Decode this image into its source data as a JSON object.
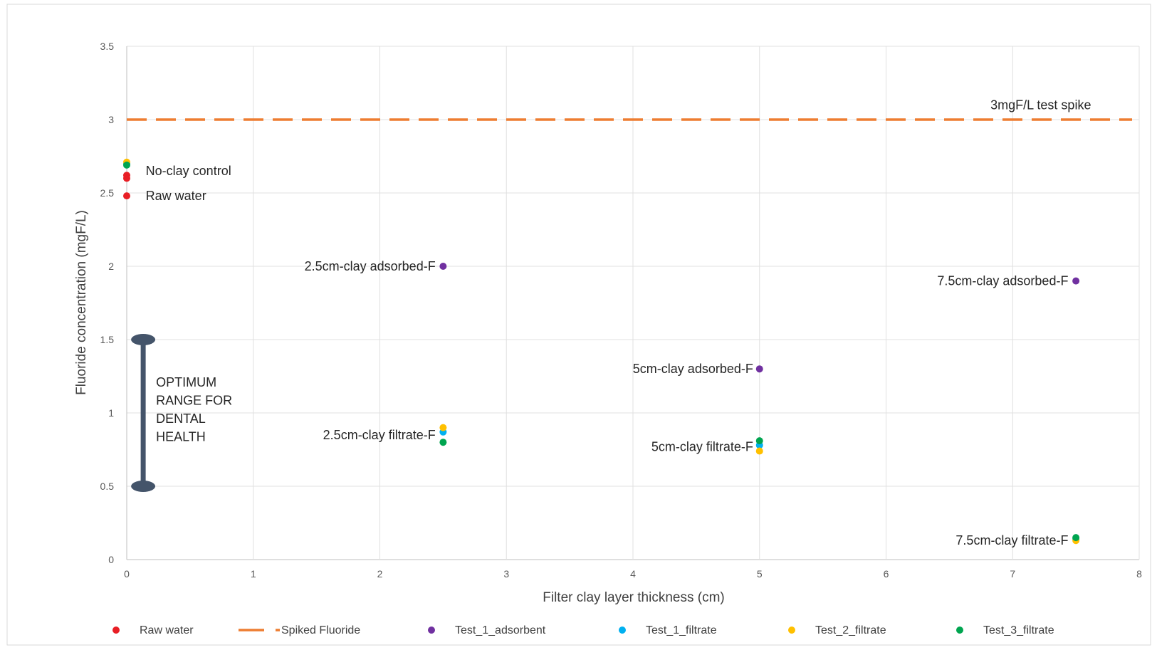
{
  "chart_data": {
    "type": "scatter",
    "title": "",
    "xlabel": "Filter clay layer thickness (cm)",
    "ylabel": "Fluoride concentration (mgF/L)",
    "xlim": [
      0,
      8
    ],
    "ylim": [
      0,
      3.5
    ],
    "x_ticks": [
      "0",
      "1",
      "2",
      "3",
      "4",
      "5",
      "6",
      "7",
      "8"
    ],
    "y_ticks": [
      "0",
      "0.5",
      "1",
      "1.5",
      "2",
      "2.5",
      "3",
      "3.5"
    ],
    "grid": true,
    "legend_position": "bottom",
    "series": [
      {
        "name": "Raw water",
        "kind": "marker",
        "color": "#e81e25",
        "points": [
          {
            "x": 0,
            "y": 2.48
          },
          {
            "x": 0,
            "y": 2.6
          },
          {
            "x": 0,
            "y": 2.62
          }
        ]
      },
      {
        "name": "Spiked Fluoride",
        "kind": "dashed-line",
        "color": "#ed7d31",
        "points": [
          {
            "x": 0,
            "y": 3
          },
          {
            "x": 8,
            "y": 3
          }
        ]
      },
      {
        "name": "Test_1_adsorbent",
        "kind": "marker",
        "color": "#7030a0",
        "points": [
          {
            "x": 2.5,
            "y": 2.0
          },
          {
            "x": 5,
            "y": 1.3
          },
          {
            "x": 7.5,
            "y": 1.9
          }
        ]
      },
      {
        "name": "Test_1_filtrate",
        "kind": "marker",
        "color": "#00b0f0",
        "points": [
          {
            "x": 0,
            "y": 2.7
          },
          {
            "x": 2.5,
            "y": 0.87
          },
          {
            "x": 5,
            "y": 0.78
          },
          {
            "x": 7.5,
            "y": 0.14
          }
        ]
      },
      {
        "name": "Test_2_filtrate",
        "kind": "marker",
        "color": "#ffc000",
        "points": [
          {
            "x": 0,
            "y": 2.71
          },
          {
            "x": 2.5,
            "y": 0.9
          },
          {
            "x": 5,
            "y": 0.74
          },
          {
            "x": 7.5,
            "y": 0.13
          }
        ]
      },
      {
        "name": "Test_3_filtrate",
        "kind": "marker",
        "color": "#00a550",
        "points": [
          {
            "x": 0,
            "y": 2.69
          },
          {
            "x": 2.5,
            "y": 0.8
          },
          {
            "x": 5,
            "y": 0.81
          },
          {
            "x": 7.5,
            "y": 0.15
          }
        ]
      }
    ],
    "annotations": [
      {
        "text": "3mgF/L test spike",
        "x": 7.62,
        "y": 3.1,
        "anchor": "end"
      },
      {
        "text": "No-clay control",
        "x": 0.15,
        "y": 2.65,
        "anchor": "start"
      },
      {
        "text": "Raw water",
        "x": 0.15,
        "y": 2.48,
        "anchor": "start"
      },
      {
        "text": "2.5cm-clay adsorbed-F",
        "x": 2.44,
        "y": 2.0,
        "anchor": "end"
      },
      {
        "text": "7.5cm-clay adsorbed-F",
        "x": 7.44,
        "y": 1.9,
        "anchor": "end"
      },
      {
        "text": "5cm-clay adsorbed-F",
        "x": 4.95,
        "y": 1.3,
        "anchor": "end"
      },
      {
        "text": "2.5cm-clay filtrate-F",
        "x": 2.44,
        "y": 0.85,
        "anchor": "end"
      },
      {
        "text": "5cm-clay filtrate-F",
        "x": 4.95,
        "y": 0.77,
        "anchor": "end"
      },
      {
        "text": "7.5cm-clay filtrate-F",
        "x": 7.44,
        "y": 0.13,
        "anchor": "end"
      }
    ],
    "optimum_range": {
      "y_low": 0.5,
      "y_high": 1.5,
      "x": 0.13,
      "color": "#44546a",
      "label_lines": [
        "OPTIMUM",
        "RANGE FOR",
        "DENTAL",
        "HEALTH"
      ]
    }
  }
}
